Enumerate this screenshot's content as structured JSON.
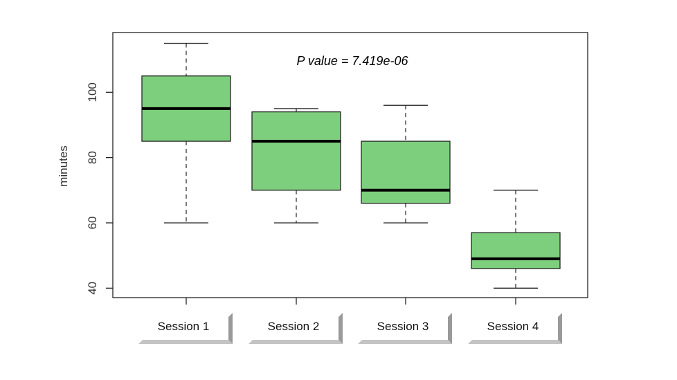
{
  "chart_data": {
    "type": "boxplot",
    "title": "P value = 7.419e-06",
    "xlabel": "",
    "ylabel": "minutes",
    "ylim": [
      36,
      118
    ],
    "yticks": [
      40,
      60,
      80,
      100
    ],
    "categories": [
      "Session 1",
      "Session 2",
      "Session 3",
      "Session 4"
    ],
    "boxes": [
      {
        "whisker_low": 60,
        "q1": 85,
        "median": 95,
        "q3": 105,
        "whisker_high": 115
      },
      {
        "whisker_low": 60,
        "q1": 70,
        "median": 85,
        "q3": 94,
        "whisker_high": 95
      },
      {
        "whisker_low": 60,
        "q1": 66,
        "median": 70,
        "q3": 85,
        "whisker_high": 96
      },
      {
        "whisker_low": 40,
        "q1": 46,
        "median": 49,
        "q3": 57,
        "whisker_high": 70
      }
    ],
    "box_color": "#7dcf7d",
    "grid": false
  }
}
